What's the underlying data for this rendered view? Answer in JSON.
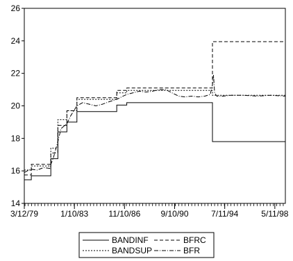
{
  "chart_data": {
    "type": "line",
    "title": "",
    "xlabel": "",
    "ylabel": "",
    "ylim": [
      14,
      26
    ],
    "yticks": [
      14,
      16,
      18,
      20,
      22,
      24,
      26
    ],
    "xlim": [
      "1979-03-12",
      "1999-03-01"
    ],
    "xticks": [
      "1979-03-12",
      "1983-01-10",
      "1986-11-10",
      "1990-09-10",
      "1994-07-11",
      "1998-05-11"
    ],
    "xtick_labels": [
      "3/12/79",
      "1/10/83",
      "11/10/86",
      "9/10/90",
      "7/11/94",
      "5/11/98"
    ],
    "grid": false,
    "legend_position": "bottom-center",
    "series": [
      {
        "name": "BANDINF",
        "dash": "solid",
        "color": "#000000",
        "points": [
          [
            "1979-03-12",
            15.45
          ],
          [
            "1979-09-24",
            15.45
          ],
          [
            "1979-09-24",
            15.7
          ],
          [
            "1981-03-22",
            15.7
          ],
          [
            "1981-03-22",
            16.75
          ],
          [
            "1981-10-05",
            16.75
          ],
          [
            "1981-10-05",
            18.4
          ],
          [
            "1982-06-14",
            18.4
          ],
          [
            "1982-06-14",
            19.0
          ],
          [
            "1983-03-21",
            19.0
          ],
          [
            "1983-03-21",
            19.65
          ],
          [
            "1986-04-07",
            19.65
          ],
          [
            "1986-04-07",
            20.05
          ],
          [
            "1987-01-12",
            20.05
          ],
          [
            "1987-01-12",
            20.2
          ],
          [
            "1993-08-02",
            20.2
          ],
          [
            "1993-08-02",
            17.8
          ],
          [
            "1999-02-20",
            17.8
          ]
        ]
      },
      {
        "name": "BANDSUP",
        "dash": "dotted",
        "color": "#000000",
        "points": [
          [
            "1979-03-12",
            16.05
          ],
          [
            "1979-09-24",
            16.05
          ],
          [
            "1979-09-24",
            16.3
          ],
          [
            "1981-03-22",
            16.3
          ],
          [
            "1981-03-22",
            17.4
          ],
          [
            "1981-10-05",
            17.4
          ],
          [
            "1981-10-05",
            19.15
          ],
          [
            "1982-06-14",
            19.15
          ],
          [
            "1982-06-14",
            19.7
          ],
          [
            "1983-03-21",
            19.7
          ],
          [
            "1983-03-21",
            20.4
          ],
          [
            "1986-04-07",
            20.4
          ],
          [
            "1986-04-07",
            20.8
          ],
          [
            "1987-01-12",
            20.8
          ],
          [
            "1987-01-12",
            20.95
          ],
          [
            "1993-08-02",
            20.95
          ],
          [
            "1993-08-02",
            20.65
          ],
          [
            "1999-02-20",
            20.65
          ]
        ]
      },
      {
        "name": "BFRC",
        "dash": "dashed",
        "color": "#000000",
        "points": [
          [
            "1979-03-12",
            15.75
          ],
          [
            "1979-09-24",
            15.75
          ],
          [
            "1979-09-24",
            16.4
          ],
          [
            "1981-03-22",
            16.4
          ],
          [
            "1981-03-22",
            17.1
          ],
          [
            "1981-10-05",
            17.1
          ],
          [
            "1981-10-05",
            18.8
          ],
          [
            "1982-06-14",
            18.8
          ],
          [
            "1982-06-14",
            19.7
          ],
          [
            "1983-03-21",
            19.7
          ],
          [
            "1983-03-21",
            20.5
          ],
          [
            "1986-04-07",
            20.5
          ],
          [
            "1986-04-07",
            20.95
          ],
          [
            "1987-01-12",
            20.95
          ],
          [
            "1987-01-12",
            21.1
          ],
          [
            "1993-08-02",
            21.1
          ],
          [
            "1993-08-02",
            23.95
          ],
          [
            "1999-02-20",
            23.95
          ]
        ]
      },
      {
        "name": "BFR",
        "dash": "dashdot",
        "color": "#000000",
        "points": [
          [
            "1979-03-12",
            15.9
          ],
          [
            "1979-06-01",
            16.0
          ],
          [
            "1979-09-24",
            16.1
          ],
          [
            "1980-03-01",
            16.05
          ],
          [
            "1980-09-01",
            16.2
          ],
          [
            "1981-03-01",
            16.15
          ],
          [
            "1981-03-22",
            16.4
          ],
          [
            "1981-06-01",
            16.8
          ],
          [
            "1981-10-05",
            17.8
          ],
          [
            "1982-01-01",
            18.6
          ],
          [
            "1982-06-14",
            18.9
          ],
          [
            "1982-10-01",
            19.4
          ],
          [
            "1983-03-21",
            20.0
          ],
          [
            "1983-09-01",
            20.2
          ],
          [
            "1984-03-01",
            20.1
          ],
          [
            "1984-09-01",
            20.0
          ],
          [
            "1985-03-01",
            20.1
          ],
          [
            "1985-09-01",
            20.25
          ],
          [
            "1986-04-07",
            20.4
          ],
          [
            "1986-10-01",
            20.6
          ],
          [
            "1987-01-12",
            20.7
          ],
          [
            "1987-07-01",
            20.8
          ],
          [
            "1988-01-01",
            20.9
          ],
          [
            "1988-07-01",
            20.85
          ],
          [
            "1989-01-01",
            20.9
          ],
          [
            "1989-07-01",
            21.0
          ],
          [
            "1990-01-01",
            21.0
          ],
          [
            "1990-07-01",
            20.8
          ],
          [
            "1991-01-01",
            20.6
          ],
          [
            "1991-07-01",
            20.55
          ],
          [
            "1992-01-01",
            20.6
          ],
          [
            "1992-07-01",
            20.55
          ],
          [
            "1993-01-01",
            20.6
          ],
          [
            "1993-06-01",
            20.7
          ],
          [
            "1993-08-02",
            21.3
          ],
          [
            "1993-09-01",
            21.9
          ],
          [
            "1993-10-01",
            20.8
          ],
          [
            "1993-12-01",
            20.6
          ],
          [
            "1994-06-01",
            20.6
          ],
          [
            "1995-01-01",
            20.65
          ],
          [
            "1996-01-01",
            20.65
          ],
          [
            "1997-01-01",
            20.6
          ],
          [
            "1998-01-01",
            20.65
          ],
          [
            "1999-02-20",
            20.6
          ]
        ]
      }
    ]
  }
}
